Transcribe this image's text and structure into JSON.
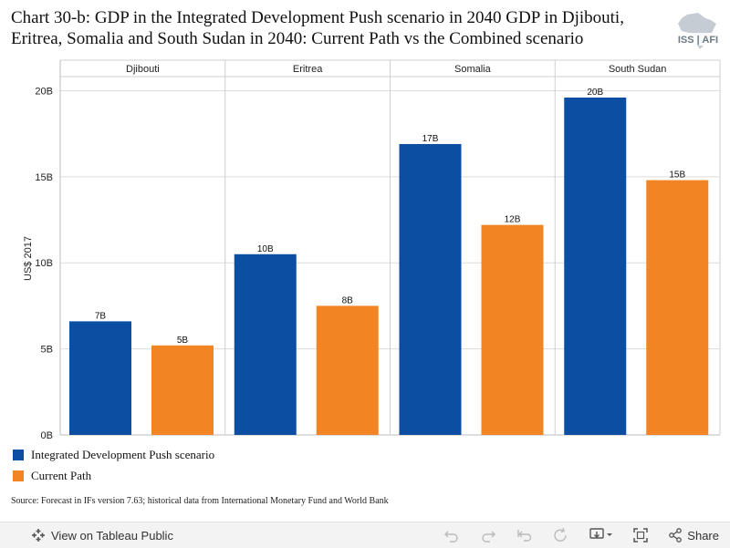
{
  "title": "Chart 30-b: GDP in the Integrated Development Push scenario in 2040 GDP in Djibouti, Eritrea, Somalia and South Sudan in 2040: Current Path vs the Combined scenario",
  "logo_text": "ISS AFI",
  "source": "Source: Forecast in IFs version 7.63; historical data from International Monetary Fund and World Bank",
  "footer": {
    "view_label": "View on Tableau Public",
    "share_label": "Share"
  },
  "chart_data": {
    "type": "bar",
    "panels": [
      "Djibouti",
      "Eritrea",
      "Somalia",
      "South Sudan"
    ],
    "series": [
      {
        "name": "Integrated Development Push scenario",
        "color": "#0b4ea2",
        "values": [
          6.6,
          10.5,
          16.9,
          19.6
        ],
        "labels": [
          "7B",
          "10B",
          "17B",
          "20B"
        ]
      },
      {
        "name": "Current Path",
        "color": "#f28423",
        "values": [
          5.2,
          7.5,
          12.2,
          14.8
        ],
        "labels": [
          "5B",
          "8B",
          "12B",
          "15B"
        ]
      }
    ],
    "ylabel": "US$ 2017",
    "ylim": [
      0,
      20.5
    ],
    "yticks": [
      0,
      5,
      10,
      15,
      20
    ],
    "ytick_labels": [
      "0B",
      "5B",
      "10B",
      "15B",
      "20B"
    ],
    "grid": true,
    "legend_position": "bottom-left"
  }
}
